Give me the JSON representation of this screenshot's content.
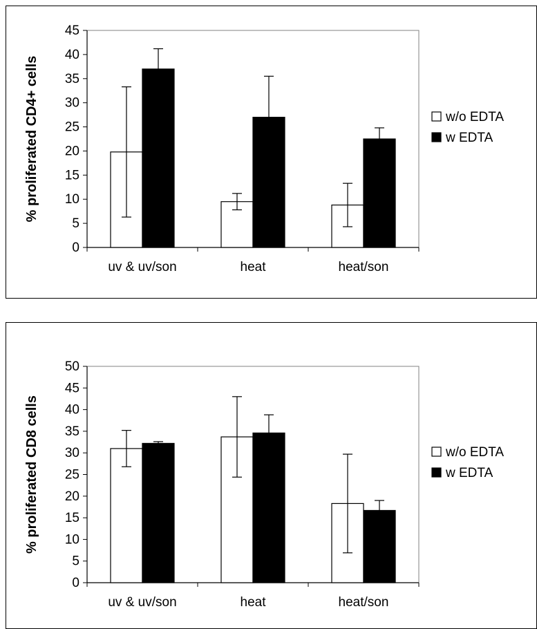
{
  "chart_data": [
    {
      "type": "bar",
      "categories": [
        "uv & uv/son",
        "heat",
        "heat/son"
      ],
      "series": [
        {
          "name": "w/o EDTA",
          "color": "#ffffff",
          "values": [
            19.8,
            9.5,
            8.8
          ],
          "errors": [
            13.5,
            1.7,
            4.5
          ]
        },
        {
          "name": "w EDTA",
          "color": "#000000",
          "values": [
            37,
            27,
            22.5
          ],
          "errors": [
            4.2,
            8.5,
            2.3
          ]
        }
      ],
      "title": "",
      "xlabel": "",
      "ylabel": "% proliferated CD4+ cells",
      "ylim": [
        0,
        45
      ],
      "yticks": [
        "0",
        "5",
        "10",
        "15",
        "20",
        "25",
        "30",
        "35",
        "40",
        "45"
      ],
      "grid": false,
      "legend": "right"
    },
    {
      "type": "bar",
      "categories": [
        "uv & uv/son",
        "heat",
        "heat/son"
      ],
      "series": [
        {
          "name": "w/o EDTA",
          "color": "#ffffff",
          "values": [
            31,
            33.7,
            18.3
          ],
          "errors": [
            4.2,
            9.3,
            11.4
          ]
        },
        {
          "name": "w EDTA",
          "color": "#000000",
          "values": [
            32.2,
            34.6,
            16.7
          ],
          "errors": [
            0.4,
            4.2,
            2.3
          ]
        }
      ],
      "title": "",
      "xlabel": "",
      "ylabel": "% proliferated CD8 cells",
      "ylim": [
        0,
        50
      ],
      "yticks": [
        "0",
        "5",
        "10",
        "15",
        "20",
        "25",
        "30",
        "35",
        "40",
        "45",
        "50"
      ],
      "grid": false,
      "legend": "right"
    }
  ]
}
